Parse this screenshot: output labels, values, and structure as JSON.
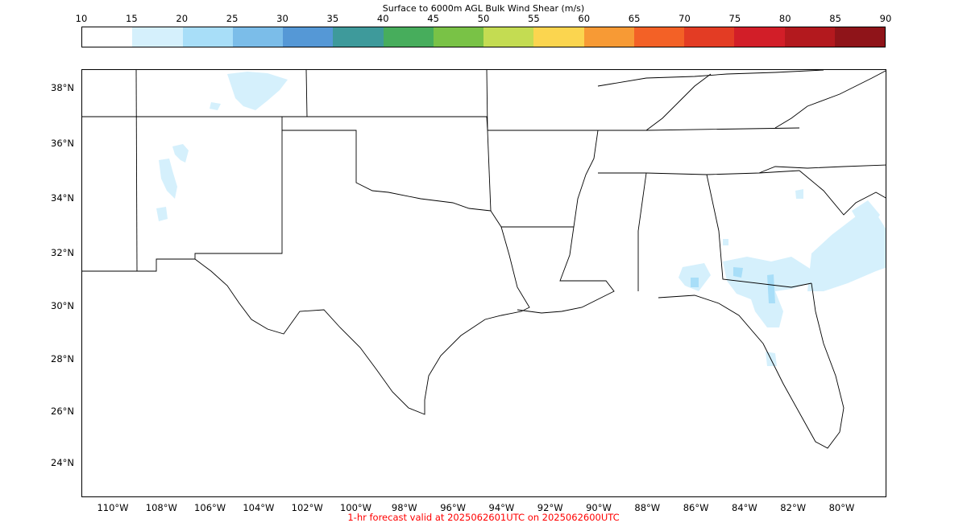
{
  "colorbar": {
    "title": "Surface to 6000m AGL Bulk Wind Shear (m/s)",
    "ticks": [
      "10",
      "15",
      "20",
      "25",
      "30",
      "35",
      "40",
      "45",
      "50",
      "55",
      "60",
      "65",
      "70",
      "75",
      "80",
      "85",
      "90"
    ],
    "colors": [
      "#ffffff",
      "#d5f0fc",
      "#a8def8",
      "#7bbde9",
      "#5598d6",
      "#3e9a9b",
      "#47ad5c",
      "#79c246",
      "#c4dc52",
      "#fbd54f",
      "#f79a35",
      "#f36126",
      "#e33c24",
      "#d21e28",
      "#b3191e",
      "#8f1419"
    ]
  },
  "map": {
    "lat_labels": [
      "38°N",
      "36°N",
      "34°N",
      "32°N",
      "30°N",
      "28°N",
      "26°N",
      "24°N"
    ],
    "lon_labels": [
      "110°W",
      "108°W",
      "106°W",
      "104°W",
      "102°W",
      "100°W",
      "98°W",
      "96°W",
      "94°W",
      "92°W",
      "90°W",
      "88°W",
      "86°W",
      "84°W",
      "82°W",
      "80°W"
    ],
    "shading_color": "#d5f0fc",
    "shading_color_dark": "#a8def8",
    "boundary_color": "#000000"
  },
  "footer": {
    "valid_text": "1-hr forecast valid at 2025062601UTC on 2025062600UTC"
  }
}
